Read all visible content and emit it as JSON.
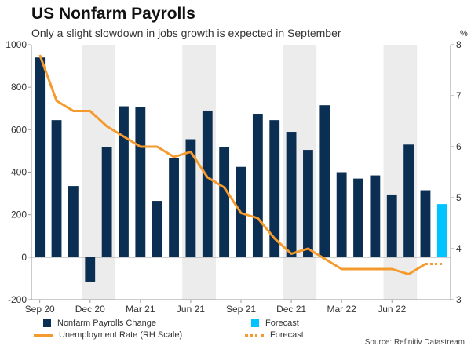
{
  "title": "US Nonfarm Payrolls",
  "subtitle": "Only a slight slowdown in jobs growth is expected in September",
  "right_axis_unit": "%",
  "source": "Source: Refinitiv Datastream",
  "legend": {
    "payrolls": "Nonfarm Payrolls Change",
    "payrolls_forecast": "Forecast",
    "unemployment": "Unemployment Rate (RH Scale)",
    "unemployment_forecast": "Forecast"
  },
  "colors": {
    "bar": "#0b2f52",
    "bar_forecast": "#00c3ff",
    "line": "#f59b2e",
    "shade": "#ececec"
  },
  "chart_data": {
    "type": "bar",
    "categories": [
      "Sep 20",
      "Oct 20",
      "Nov 20",
      "Dec 20",
      "Jan 21",
      "Feb 21",
      "Mar 21",
      "Apr 21",
      "May 21",
      "Jun 21",
      "Jul 21",
      "Aug 21",
      "Sep 21",
      "Oct 21",
      "Nov 21",
      "Dec 21",
      "Jan 22",
      "Feb 22",
      "Mar 22",
      "Apr 22",
      "May 22",
      "Jun 22",
      "Jul 22",
      "Aug 22",
      "Sep 22"
    ],
    "x_tick_labels": [
      "Sep 20",
      "Dec 20",
      "Mar 21",
      "Jun 21",
      "Sep 21",
      "Dec 21",
      "Mar 22",
      "Jun 22"
    ],
    "x_tick_indices": [
      0,
      3,
      6,
      9,
      12,
      15,
      18,
      21
    ],
    "series": [
      {
        "name": "Nonfarm Payrolls Change",
        "axis": "left",
        "values": [
          940,
          645,
          335,
          -115,
          520,
          710,
          705,
          265,
          465,
          555,
          690,
          520,
          425,
          675,
          645,
          590,
          505,
          715,
          400,
          370,
          385,
          295,
          530,
          315,
          null
        ]
      },
      {
        "name": "Forecast",
        "axis": "left",
        "values": [
          null,
          null,
          null,
          null,
          null,
          null,
          null,
          null,
          null,
          null,
          null,
          null,
          null,
          null,
          null,
          null,
          null,
          null,
          null,
          null,
          null,
          null,
          null,
          null,
          250
        ]
      },
      {
        "name": "Unemployment Rate (RH Scale)",
        "axis": "right",
        "values": [
          7.8,
          6.9,
          6.7,
          6.7,
          6.4,
          6.2,
          6.0,
          6.0,
          5.8,
          5.9,
          5.4,
          5.2,
          4.7,
          4.6,
          4.2,
          3.9,
          4.0,
          3.8,
          3.6,
          3.6,
          3.6,
          3.6,
          3.5,
          3.7,
          null
        ]
      },
      {
        "name": "Forecast",
        "axis": "right",
        "values": [
          null,
          null,
          null,
          null,
          null,
          null,
          null,
          null,
          null,
          null,
          null,
          null,
          null,
          null,
          null,
          null,
          null,
          null,
          null,
          null,
          null,
          null,
          null,
          3.7,
          3.7
        ]
      }
    ],
    "ylim": [
      -200,
      1000
    ],
    "yticks": [
      -200,
      0,
      200,
      400,
      600,
      800,
      1000
    ],
    "y2lim": [
      3,
      8
    ],
    "y2ticks": [
      3,
      4,
      5,
      6,
      7,
      8
    ],
    "shaded_bands": [
      [
        3,
        5
      ],
      [
        9,
        11
      ],
      [
        15,
        17
      ],
      [
        21,
        23
      ]
    ]
  }
}
